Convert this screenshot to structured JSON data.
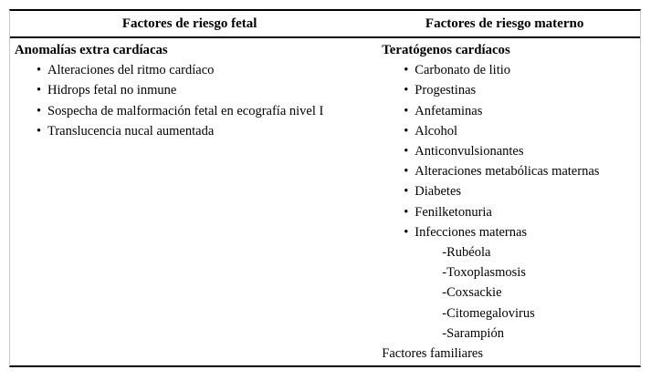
{
  "glyphs": {
    "bullet": "•"
  },
  "colors": {
    "text": "#000000",
    "rule": "#000000",
    "side_border": "#c9c9c9",
    "background": "#ffffff"
  },
  "table": {
    "columns": [
      {
        "header": "Factores de riesgo fetal"
      },
      {
        "header": "Factores de riesgo materno"
      }
    ],
    "fetal": {
      "heading": "Anomalías extra cardíacas",
      "items": [
        "Alteraciones del ritmo cardíaco",
        "Hidrops fetal no inmune",
        "Sospecha de malformación fetal en ecografía nivel I",
        "Translucencia nucal aumentada"
      ]
    },
    "materno": {
      "heading": "Teratógenos cardíacos",
      "items": [
        "Carbonato de litio",
        "Progestinas",
        "Anfetaminas",
        "Alcohol",
        "Anticonvulsionantes",
        "Alteraciones metabólicas maternas",
        "Diabetes",
        "Fenilketonuria",
        "Infecciones maternas"
      ],
      "infecciones_sub": [
        "-Rubéola",
        "-Toxoplasmosis",
        "-Coxsackie",
        "-Citomegalovirus",
        "-Sarampión"
      ],
      "plain_item": "Factores familiares"
    }
  }
}
